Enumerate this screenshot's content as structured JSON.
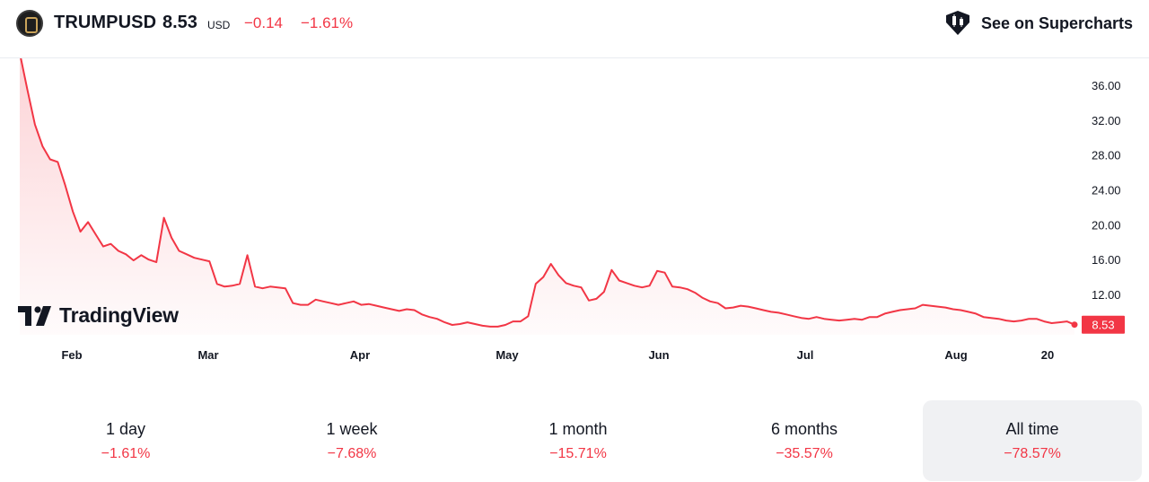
{
  "header": {
    "symbol": "TRUMPUSD",
    "price": "8.53",
    "currency": "USD",
    "change": "−0.14",
    "change_percent": "−1.61%",
    "supercharts_label": "See on Supercharts"
  },
  "branding": {
    "watermark": "TradingView"
  },
  "colors": {
    "accent": "#f23645",
    "text": "#131722",
    "axis_text": "#131722",
    "active_tab_bg": "#f0f1f3"
  },
  "chart_data": {
    "type": "area",
    "title": "",
    "xlabel": "",
    "ylabel": "",
    "x_ticks": [
      "Feb",
      "Mar",
      "Apr",
      "May",
      "Jun",
      "Jul",
      "Aug",
      "20"
    ],
    "y_ticks": [
      "12.00",
      "16.00",
      "20.00",
      "24.00",
      "28.00",
      "32.00",
      "36.00"
    ],
    "y_range": [
      7.0,
      38.5
    ],
    "last_value_label": "8.53",
    "grid": false,
    "series": [
      {
        "values": [
          40.0,
          35.5,
          31.5,
          29.0,
          27.5,
          27.2,
          24.5,
          21.5,
          19.2,
          20.3,
          18.9,
          17.5,
          17.8,
          17.0,
          16.6,
          15.9,
          16.5,
          16.0,
          15.7,
          20.8,
          18.5,
          17.0,
          16.6,
          16.2,
          16.0,
          15.8,
          13.2,
          12.9,
          13.0,
          13.2,
          16.5,
          12.9,
          12.7,
          12.9,
          12.8,
          12.7,
          11.0,
          10.8,
          10.8,
          11.4,
          11.2,
          11.0,
          10.8,
          11.0,
          11.2,
          10.8,
          10.9,
          10.7,
          10.5,
          10.3,
          10.1,
          10.3,
          10.2,
          9.7,
          9.4,
          9.2,
          8.8,
          8.5,
          8.6,
          8.8,
          8.6,
          8.4,
          8.3,
          8.3,
          8.5,
          8.9,
          8.9,
          9.5,
          13.2,
          14.0,
          15.5,
          14.2,
          13.3,
          13.0,
          12.8,
          11.3,
          11.5,
          12.3,
          14.8,
          13.6,
          13.3,
          13.0,
          12.8,
          13.0,
          14.7,
          14.5,
          12.9,
          12.8,
          12.6,
          12.2,
          11.6,
          11.2,
          11.0,
          10.4,
          10.5,
          10.7,
          10.6,
          10.4,
          10.2,
          10.0,
          9.9,
          9.7,
          9.5,
          9.3,
          9.2,
          9.4,
          9.2,
          9.1,
          9.0,
          9.1,
          9.2,
          9.1,
          9.4,
          9.4,
          9.8,
          10.0,
          10.2,
          10.3,
          10.4,
          10.8,
          10.7,
          10.6,
          10.5,
          10.3,
          10.2,
          10.0,
          9.8,
          9.4,
          9.3,
          9.2,
          9.0,
          8.9,
          9.0,
          9.2,
          9.2,
          8.9,
          8.7,
          8.8,
          8.9,
          8.53
        ]
      }
    ]
  },
  "periods": [
    {
      "label": "1 day",
      "value": "−1.61%"
    },
    {
      "label": "1 week",
      "value": "−7.68%"
    },
    {
      "label": "1 month",
      "value": "−15.71%"
    },
    {
      "label": "6 months",
      "value": "−35.57%"
    },
    {
      "label": "All time",
      "value": "−78.57%",
      "active": true
    }
  ]
}
